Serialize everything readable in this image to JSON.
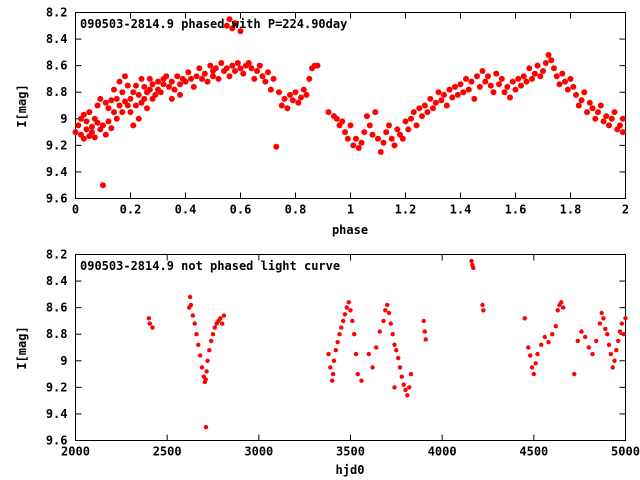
{
  "chart_data": [
    {
      "type": "scatter",
      "title": "090503-2814.9 phased with P=224.90day",
      "xlabel": "phase",
      "ylabel": "I[mag]",
      "xlim": [
        0,
        2
      ],
      "ylim": [
        8.2,
        9.6
      ],
      "y_inverted": true,
      "grid": false,
      "marker_color": "#ff0000",
      "x_ticks": [
        "0",
        "0.2",
        "0.4",
        "0.6",
        "0.8",
        "1",
        "1.2",
        "1.4",
        "1.6",
        "1.8",
        "2"
      ],
      "x_tick_values": [
        0,
        0.2,
        0.4,
        0.6,
        0.8,
        1.0,
        1.2,
        1.4,
        1.6,
        1.8,
        2.0
      ],
      "y_ticks": [
        "8.2",
        "8.4",
        "8.6",
        "8.8",
        "9",
        "9.2",
        "9.4",
        "9.6"
      ],
      "y_tick_values": [
        8.2,
        8.4,
        8.6,
        8.8,
        9.0,
        9.2,
        9.4,
        9.6
      ],
      "points": [
        [
          0.0,
          9.1
        ],
        [
          0.01,
          9.05
        ],
        [
          0.02,
          9.12
        ],
        [
          0.02,
          9.0
        ],
        [
          0.03,
          9.15
        ],
        [
          0.03,
          8.97
        ],
        [
          0.04,
          9.08
        ],
        [
          0.04,
          9.02
        ],
        [
          0.05,
          9.13
        ],
        [
          0.05,
          8.95
        ],
        [
          0.06,
          9.06
        ],
        [
          0.06,
          9.1
        ],
        [
          0.07,
          9.0
        ],
        [
          0.07,
          9.14
        ],
        [
          0.08,
          9.03
        ],
        [
          0.08,
          8.9
        ],
        [
          0.09,
          9.08
        ],
        [
          0.09,
          8.85
        ],
        [
          0.1,
          9.5
        ],
        [
          0.1,
          9.05
        ],
        [
          0.11,
          8.88
        ],
        [
          0.11,
          9.12
        ],
        [
          0.12,
          8.92
        ],
        [
          0.12,
          9.02
        ],
        [
          0.13,
          8.86
        ],
        [
          0.13,
          9.07
        ],
        [
          0.14,
          8.78
        ],
        [
          0.14,
          8.95
        ],
        [
          0.15,
          8.85
        ],
        [
          0.15,
          9.0
        ],
        [
          0.16,
          8.72
        ],
        [
          0.16,
          8.9
        ],
        [
          0.17,
          8.95
        ],
        [
          0.17,
          8.8
        ],
        [
          0.18,
          8.68
        ],
        [
          0.18,
          8.87
        ],
        [
          0.19,
          8.75
        ],
        [
          0.19,
          8.9
        ],
        [
          0.2,
          8.85
        ],
        [
          0.2,
          8.95
        ],
        [
          0.21,
          8.8
        ],
        [
          0.21,
          9.05
        ],
        [
          0.22,
          8.9
        ],
        [
          0.22,
          8.75
        ],
        [
          0.23,
          8.82
        ],
        [
          0.23,
          9.0
        ],
        [
          0.24,
          8.7
        ],
        [
          0.24,
          8.88
        ],
        [
          0.25,
          8.85
        ],
        [
          0.25,
          8.76
        ],
        [
          0.26,
          8.8
        ],
        [
          0.26,
          8.92
        ],
        [
          0.27,
          8.78
        ],
        [
          0.27,
          8.7
        ],
        [
          0.28,
          8.85
        ],
        [
          0.28,
          8.74
        ],
        [
          0.29,
          8.82
        ],
        [
          0.3,
          8.72
        ],
        [
          0.3,
          8.78
        ],
        [
          0.31,
          8.8
        ],
        [
          0.32,
          8.74
        ],
        [
          0.32,
          8.7
        ],
        [
          0.33,
          8.68
        ],
        [
          0.34,
          8.76
        ],
        [
          0.35,
          8.72
        ],
        [
          0.35,
          8.85
        ],
        [
          0.36,
          8.78
        ],
        [
          0.37,
          8.68
        ],
        [
          0.38,
          8.74
        ],
        [
          0.38,
          8.82
        ],
        [
          0.39,
          8.7
        ],
        [
          0.4,
          8.72
        ],
        [
          0.41,
          8.65
        ],
        [
          0.42,
          8.7
        ],
        [
          0.43,
          8.76
        ],
        [
          0.44,
          8.68
        ],
        [
          0.45,
          8.62
        ],
        [
          0.46,
          8.7
        ],
        [
          0.47,
          8.66
        ],
        [
          0.48,
          8.72
        ],
        [
          0.49,
          8.6
        ],
        [
          0.5,
          8.68
        ],
        [
          0.5,
          8.64
        ],
        [
          0.51,
          8.62
        ],
        [
          0.52,
          8.7
        ],
        [
          0.53,
          8.58
        ],
        [
          0.54,
          8.64
        ],
        [
          0.55,
          8.62
        ],
        [
          0.55,
          8.3
        ],
        [
          0.56,
          8.25
        ],
        [
          0.56,
          8.68
        ],
        [
          0.57,
          8.6
        ],
        [
          0.57,
          8.32
        ],
        [
          0.58,
          8.28
        ],
        [
          0.58,
          8.64
        ],
        [
          0.59,
          8.58
        ],
        [
          0.6,
          8.62
        ],
        [
          0.6,
          8.34
        ],
        [
          0.61,
          8.66
        ],
        [
          0.62,
          8.6
        ],
        [
          0.63,
          8.58
        ],
        [
          0.64,
          8.62
        ],
        [
          0.65,
          8.7
        ],
        [
          0.66,
          8.64
        ],
        [
          0.67,
          8.6
        ],
        [
          0.68,
          8.68
        ],
        [
          0.69,
          8.72
        ],
        [
          0.7,
          8.65
        ],
        [
          0.71,
          8.78
        ],
        [
          0.72,
          8.7
        ],
        [
          0.73,
          9.21
        ],
        [
          0.74,
          8.8
        ],
        [
          0.75,
          8.9
        ],
        [
          0.76,
          8.85
        ],
        [
          0.77,
          8.92
        ],
        [
          0.78,
          8.82
        ],
        [
          0.79,
          8.86
        ],
        [
          0.8,
          8.8
        ],
        [
          0.81,
          8.88
        ],
        [
          0.82,
          8.84
        ],
        [
          0.83,
          8.78
        ],
        [
          0.84,
          8.82
        ],
        [
          0.85,
          8.7
        ],
        [
          0.86,
          8.62
        ],
        [
          0.87,
          8.6
        ],
        [
          0.88,
          8.6
        ],
        [
          0.92,
          8.95
        ],
        [
          0.94,
          8.98
        ],
        [
          0.95,
          9.0
        ],
        [
          0.96,
          9.05
        ],
        [
          0.97,
          9.02
        ],
        [
          0.98,
          9.1
        ],
        [
          0.99,
          9.15
        ],
        [
          1.0,
          9.05
        ],
        [
          1.01,
          9.2
        ],
        [
          1.02,
          9.15
        ],
        [
          1.03,
          9.22
        ],
        [
          1.04,
          9.18
        ],
        [
          1.05,
          9.1
        ],
        [
          1.06,
          8.98
        ],
        [
          1.07,
          9.05
        ],
        [
          1.08,
          9.12
        ],
        [
          1.09,
          8.95
        ],
        [
          1.1,
          9.15
        ],
        [
          1.11,
          9.25
        ],
        [
          1.12,
          9.18
        ],
        [
          1.13,
          9.1
        ],
        [
          1.14,
          9.05
        ],
        [
          1.15,
          9.15
        ],
        [
          1.16,
          9.2
        ],
        [
          1.17,
          9.08
        ],
        [
          1.18,
          9.12
        ],
        [
          1.19,
          9.15
        ],
        [
          1.2,
          9.02
        ],
        [
          1.21,
          9.08
        ],
        [
          1.22,
          9.0
        ],
        [
          1.23,
          8.95
        ],
        [
          1.24,
          9.05
        ],
        [
          1.25,
          8.92
        ],
        [
          1.26,
          8.98
        ],
        [
          1.27,
          8.9
        ],
        [
          1.28,
          8.95
        ],
        [
          1.29,
          8.85
        ],
        [
          1.3,
          8.92
        ],
        [
          1.31,
          8.88
        ],
        [
          1.32,
          8.8
        ],
        [
          1.33,
          8.86
        ],
        [
          1.34,
          8.82
        ],
        [
          1.35,
          8.9
        ],
        [
          1.36,
          8.78
        ],
        [
          1.37,
          8.84
        ],
        [
          1.38,
          8.76
        ],
        [
          1.39,
          8.82
        ],
        [
          1.4,
          8.74
        ],
        [
          1.41,
          8.8
        ],
        [
          1.42,
          8.7
        ],
        [
          1.43,
          8.78
        ],
        [
          1.44,
          8.72
        ],
        [
          1.45,
          8.85
        ],
        [
          1.46,
          8.68
        ],
        [
          1.47,
          8.76
        ],
        [
          1.48,
          8.64
        ],
        [
          1.49,
          8.72
        ],
        [
          1.5,
          8.68
        ],
        [
          1.51,
          8.75
        ],
        [
          1.52,
          8.8
        ],
        [
          1.53,
          8.66
        ],
        [
          1.54,
          8.74
        ],
        [
          1.55,
          8.7
        ],
        [
          1.56,
          8.8
        ],
        [
          1.57,
          8.76
        ],
        [
          1.58,
          8.84
        ],
        [
          1.59,
          8.72
        ],
        [
          1.6,
          8.78
        ],
        [
          1.61,
          8.7
        ],
        [
          1.62,
          8.75
        ],
        [
          1.63,
          8.68
        ],
        [
          1.64,
          8.72
        ],
        [
          1.65,
          8.62
        ],
        [
          1.66,
          8.7
        ],
        [
          1.67,
          8.66
        ],
        [
          1.68,
          8.6
        ],
        [
          1.69,
          8.68
        ],
        [
          1.7,
          8.64
        ],
        [
          1.71,
          8.58
        ],
        [
          1.72,
          8.52
        ],
        [
          1.73,
          8.56
        ],
        [
          1.74,
          8.62
        ],
        [
          1.75,
          8.68
        ],
        [
          1.76,
          8.74
        ],
        [
          1.77,
          8.66
        ],
        [
          1.78,
          8.72
        ],
        [
          1.79,
          8.78
        ],
        [
          1.8,
          8.7
        ],
        [
          1.81,
          8.76
        ],
        [
          1.82,
          8.82
        ],
        [
          1.83,
          8.9
        ],
        [
          1.84,
          8.86
        ],
        [
          1.85,
          8.8
        ],
        [
          1.86,
          8.95
        ],
        [
          1.87,
          8.88
        ],
        [
          1.88,
          8.92
        ],
        [
          1.89,
          9.0
        ],
        [
          1.9,
          8.95
        ],
        [
          1.91,
          8.9
        ],
        [
          1.92,
          9.02
        ],
        [
          1.93,
          8.98
        ],
        [
          1.94,
          9.05
        ],
        [
          1.95,
          9.0
        ],
        [
          1.96,
          8.95
        ],
        [
          1.97,
          9.08
        ],
        [
          1.98,
          9.05
        ],
        [
          1.99,
          9.1
        ],
        [
          1.99,
          9.0
        ]
      ]
    },
    {
      "type": "scatter",
      "title": "090503-2814.9 not phased light curve",
      "xlabel": "hjd0",
      "ylabel": "I[mag]",
      "xlim": [
        2000,
        5000
      ],
      "ylim": [
        8.2,
        9.6
      ],
      "y_inverted": true,
      "grid": false,
      "marker_color": "#ff0000",
      "x_ticks": [
        "2000",
        "2500",
        "3000",
        "3500",
        "4000",
        "4500",
        "5000"
      ],
      "x_tick_values": [
        2000,
        2500,
        3000,
        3500,
        4000,
        4500,
        5000
      ],
      "y_ticks": [
        "8.2",
        "8.4",
        "8.6",
        "8.8",
        "9",
        "9.2",
        "9.4",
        "9.6"
      ],
      "y_tick_values": [
        8.2,
        8.4,
        8.6,
        8.8,
        9.0,
        9.2,
        9.4,
        9.6
      ],
      "points": [
        [
          2400,
          8.68
        ],
        [
          2405,
          8.72
        ],
        [
          2420,
          8.75
        ],
        [
          2620,
          8.6
        ],
        [
          2625,
          8.52
        ],
        [
          2630,
          8.58
        ],
        [
          2640,
          8.66
        ],
        [
          2650,
          8.72
        ],
        [
          2660,
          8.8
        ],
        [
          2670,
          8.88
        ],
        [
          2680,
          8.96
        ],
        [
          2690,
          9.05
        ],
        [
          2700,
          9.12
        ],
        [
          2705,
          9.16
        ],
        [
          2710,
          9.14
        ],
        [
          2712,
          9.5
        ],
        [
          2715,
          9.08
        ],
        [
          2720,
          9.0
        ],
        [
          2730,
          8.92
        ],
        [
          2740,
          8.85
        ],
        [
          2750,
          8.8
        ],
        [
          2760,
          8.75
        ],
        [
          2770,
          8.72
        ],
        [
          2780,
          8.7
        ],
        [
          2790,
          8.68
        ],
        [
          2800,
          8.72
        ],
        [
          2810,
          8.66
        ],
        [
          3380,
          8.95
        ],
        [
          3390,
          9.05
        ],
        [
          3400,
          9.15
        ],
        [
          3405,
          9.1
        ],
        [
          3410,
          9.0
        ],
        [
          3420,
          8.92
        ],
        [
          3430,
          8.86
        ],
        [
          3440,
          8.8
        ],
        [
          3450,
          8.75
        ],
        [
          3460,
          8.7
        ],
        [
          3470,
          8.65
        ],
        [
          3480,
          8.6
        ],
        [
          3490,
          8.56
        ],
        [
          3500,
          8.62
        ],
        [
          3510,
          8.7
        ],
        [
          3520,
          8.8
        ],
        [
          3530,
          8.95
        ],
        [
          3540,
          9.1
        ],
        [
          3560,
          9.15
        ],
        [
          3600,
          8.95
        ],
        [
          3620,
          9.05
        ],
        [
          3640,
          8.9
        ],
        [
          3660,
          8.78
        ],
        [
          3680,
          8.7
        ],
        [
          3690,
          8.62
        ],
        [
          3700,
          8.58
        ],
        [
          3710,
          8.64
        ],
        [
          3720,
          8.72
        ],
        [
          3730,
          8.8
        ],
        [
          3740,
          8.88
        ],
        [
          3750,
          8.92
        ],
        [
          3760,
          8.98
        ],
        [
          3770,
          9.05
        ],
        [
          3780,
          9.12
        ],
        [
          3790,
          9.18
        ],
        [
          3800,
          9.22
        ],
        [
          3810,
          9.26
        ],
        [
          3820,
          9.2
        ],
        [
          3830,
          9.1
        ],
        [
          3740,
          9.2
        ],
        [
          3900,
          8.7
        ],
        [
          3905,
          8.78
        ],
        [
          3910,
          8.84
        ],
        [
          4160,
          8.25
        ],
        [
          4165,
          8.28
        ],
        [
          4170,
          8.3
        ],
        [
          4220,
          8.58
        ],
        [
          4225,
          8.62
        ],
        [
          4450,
          8.68
        ],
        [
          4470,
          8.9
        ],
        [
          4480,
          8.96
        ],
        [
          4490,
          9.05
        ],
        [
          4500,
          9.1
        ],
        [
          4510,
          9.02
        ],
        [
          4520,
          8.95
        ],
        [
          4540,
          8.88
        ],
        [
          4560,
          8.82
        ],
        [
          4580,
          8.86
        ],
        [
          4600,
          8.8
        ],
        [
          4620,
          8.74
        ],
        [
          4630,
          8.62
        ],
        [
          4640,
          8.58
        ],
        [
          4650,
          8.56
        ],
        [
          4660,
          8.6
        ],
        [
          4720,
          9.1
        ],
        [
          4740,
          8.85
        ],
        [
          4760,
          8.78
        ],
        [
          4780,
          8.82
        ],
        [
          4800,
          8.9
        ],
        [
          4820,
          8.95
        ],
        [
          4840,
          8.85
        ],
        [
          4860,
          8.72
        ],
        [
          4870,
          8.64
        ],
        [
          4880,
          8.68
        ],
        [
          4890,
          8.76
        ],
        [
          4900,
          8.8
        ],
        [
          4910,
          8.88
        ],
        [
          4920,
          8.95
        ],
        [
          4930,
          9.05
        ],
        [
          4940,
          9.0
        ],
        [
          4950,
          8.92
        ],
        [
          4960,
          8.85
        ],
        [
          4970,
          8.78
        ],
        [
          4980,
          8.72
        ],
        [
          4990,
          8.8
        ],
        [
          5000,
          8.68
        ]
      ]
    }
  ]
}
